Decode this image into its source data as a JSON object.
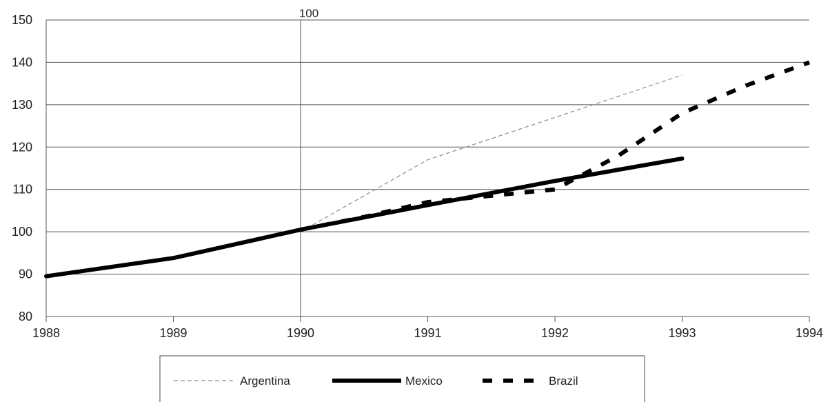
{
  "chart_data": {
    "type": "line",
    "title": "",
    "xlabel": "",
    "ylabel": "",
    "xlim": [
      1988,
      1994
    ],
    "ylim": [
      80,
      150
    ],
    "y_ticks": [
      "80",
      "90",
      "100",
      "110",
      "120",
      "130",
      "140",
      "150"
    ],
    "x_ticks": [
      "1988",
      "1989",
      "1990",
      "1991",
      "1992",
      "1993",
      "1994"
    ],
    "grid": "horizontal",
    "reference_line": {
      "x": 1990,
      "label": "100"
    },
    "legend": {
      "position": "bottom",
      "frame": true
    },
    "series": [
      {
        "name": "Argentina",
        "style": "thin-dashed",
        "color": "#8c8c8c",
        "points": [
          [
            1990,
            100
          ],
          [
            1990.5,
            108.5
          ],
          [
            1991,
            117
          ],
          [
            1991.5,
            122
          ],
          [
            1992,
            127
          ],
          [
            1992.5,
            132
          ],
          [
            1993,
            137
          ]
        ]
      },
      {
        "name": "Mexico",
        "style": "thick-solid",
        "color": "#000000",
        "points": [
          [
            1988,
            89.5
          ],
          [
            1989,
            93.8
          ],
          [
            1990,
            100.5
          ],
          [
            1991,
            106.3
          ],
          [
            1992,
            112
          ],
          [
            1993,
            117.3
          ]
        ]
      },
      {
        "name": "Brazil",
        "style": "thick-dashed",
        "color": "#000000",
        "points": [
          [
            1990,
            100.5
          ],
          [
            1990.5,
            103.5
          ],
          [
            1991,
            107
          ],
          [
            1991.5,
            108.5
          ],
          [
            1992,
            110
          ],
          [
            1992.5,
            118
          ],
          [
            1993,
            128
          ],
          [
            1993.5,
            134.5
          ],
          [
            1994,
            140
          ]
        ]
      }
    ]
  }
}
